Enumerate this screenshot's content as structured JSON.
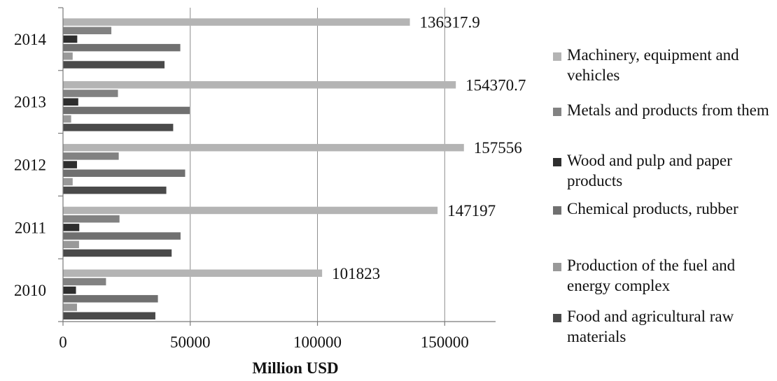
{
  "chart_data": {
    "type": "bar",
    "orientation": "horizontal",
    "xlabel": "Million USD",
    "ylabel": "",
    "xlim": [
      0,
      170000
    ],
    "xticks": [
      0,
      50000,
      100000,
      150000
    ],
    "grid": "vertical",
    "legend_position": "right",
    "categories": [
      "2010",
      "2011",
      "2012",
      "2013",
      "2014"
    ],
    "series": [
      {
        "name": "Food and agricultural raw materials",
        "color": "#4a4a4a",
        "values": [
          36300,
          42700,
          40600,
          43300,
          39900
        ]
      },
      {
        "name": "Production of the fuel and energy complex",
        "color": "#999999",
        "values": [
          5500,
          6300,
          3800,
          3200,
          3800
        ]
      },
      {
        "name": "Chemical products, rubber",
        "color": "#707070",
        "values": [
          37300,
          46200,
          48000,
          49800,
          46100
        ]
      },
      {
        "name": "Wood and pulp and paper products",
        "color": "#2e2e2e",
        "values": [
          5100,
          6400,
          5500,
          6000,
          5600
        ]
      },
      {
        "name": "Metals and products from them",
        "color": "#828282",
        "values": [
          16900,
          22200,
          21900,
          21600,
          19000
        ]
      },
      {
        "name": "Machinery, equipment and vehicles",
        "color": "#b4b4b4",
        "values": [
          101823,
          147197,
          157556,
          154370.7,
          136317.9
        ]
      }
    ],
    "data_labels": [
      "101823",
      "147197",
      "157556",
      "154370.7",
      "136317.9"
    ]
  },
  "legend": {
    "items": [
      {
        "label": "Machinery, equipment and vehicles",
        "color": "#b4b4b4"
      },
      {
        "label": "Metals and products from them",
        "color": "#828282"
      },
      {
        "label": "Wood and pulp and paper products",
        "color": "#2e2e2e"
      },
      {
        "label": "Chemical products, rubber",
        "color": "#707070"
      },
      {
        "label": "Production of the fuel and energy complex",
        "color": "#999999"
      },
      {
        "label": "Food and agricultural raw materials",
        "color": "#4a4a4a"
      }
    ]
  }
}
